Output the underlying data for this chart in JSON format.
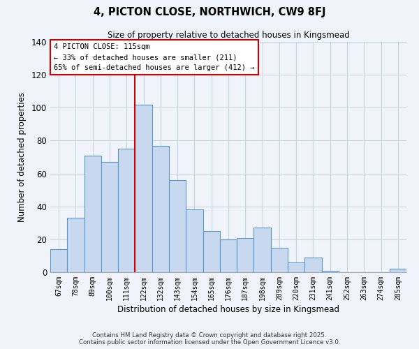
{
  "title": "4, PICTON CLOSE, NORTHWICH, CW9 8FJ",
  "subtitle": "Size of property relative to detached houses in Kingsmead",
  "xlabel": "Distribution of detached houses by size in Kingsmead",
  "ylabel": "Number of detached properties",
  "bar_labels": [
    "67sqm",
    "78sqm",
    "89sqm",
    "100sqm",
    "111sqm",
    "122sqm",
    "132sqm",
    "143sqm",
    "154sqm",
    "165sqm",
    "176sqm",
    "187sqm",
    "198sqm",
    "209sqm",
    "220sqm",
    "231sqm",
    "241sqm",
    "252sqm",
    "263sqm",
    "274sqm",
    "285sqm"
  ],
  "bar_heights": [
    14,
    33,
    71,
    67,
    75,
    102,
    77,
    56,
    38,
    25,
    20,
    21,
    27,
    15,
    6,
    9,
    1,
    0,
    0,
    0,
    2
  ],
  "bar_color": "#c8d8ee",
  "bar_edge_color": "#5599cc",
  "vline_x": 4.5,
  "vline_color": "#cc0000",
  "ylim": [
    0,
    140
  ],
  "yticks": [
    0,
    20,
    40,
    60,
    80,
    100,
    120,
    140
  ],
  "annotation_title": "4 PICTON CLOSE: 115sqm",
  "annotation_line1": "← 33% of detached houses are smaller (211)",
  "annotation_line2": "65% of semi-detached houses are larger (412) →",
  "annotation_box_color": "#ffffff",
  "annotation_box_edge": "#cc0000",
  "footer_line1": "Contains HM Land Registry data © Crown copyright and database right 2025.",
  "footer_line2": "Contains public sector information licensed under the Open Government Licence v3.0.",
  "background_color": "#f0f4fa",
  "grid_color": "#c8d4e0"
}
